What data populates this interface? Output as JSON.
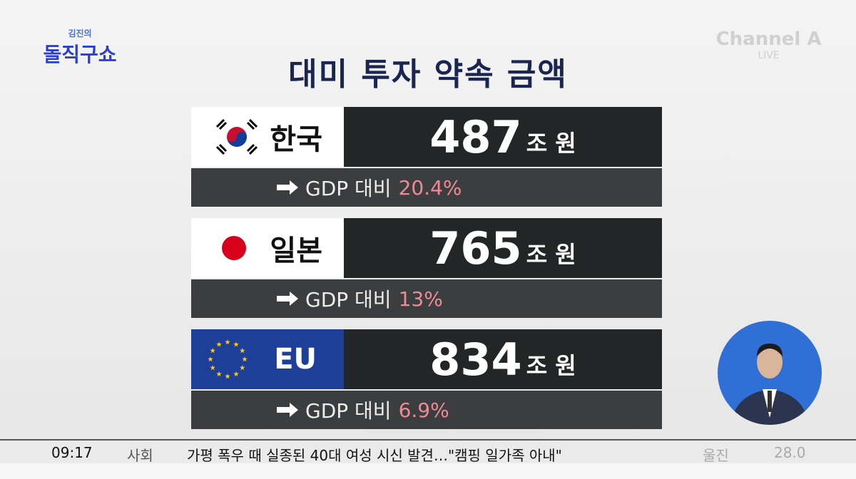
{
  "logo": {
    "top": "김진의",
    "main": "돌직구쇼"
  },
  "channel": {
    "name": "Channel A",
    "status": "LIVE"
  },
  "title": "대미 투자 약속 금액",
  "rows": [
    {
      "country": "한국",
      "amount": "487",
      "unit": "조 원",
      "gdp_label": "GDP 대비",
      "gdp_value": "20.4%"
    },
    {
      "country": "일본",
      "amount": "765",
      "unit": "조 원",
      "gdp_label": "GDP 대비",
      "gdp_value": "13%"
    },
    {
      "country": "EU",
      "amount": "834",
      "unit": "조 원",
      "gdp_label": "GDP 대비",
      "gdp_value": "6.9%"
    }
  ],
  "ticker": {
    "time": "09:17",
    "section": "사회",
    "headline": "가평 폭우 때 실종된 40대 여성 시신 발견…\"캠핑 일가족 아내\"",
    "location": "울진",
    "temperature": "28.0"
  }
}
